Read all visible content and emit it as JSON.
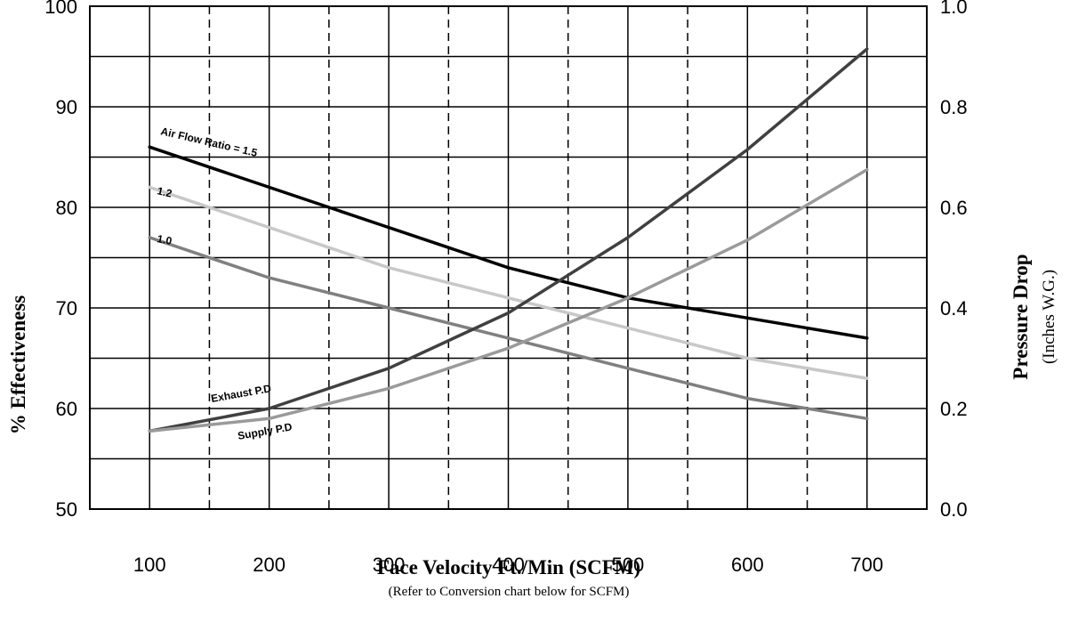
{
  "chart_data": {
    "type": "line",
    "title": "",
    "xlabel": "Face Velocity Ft./Min (SCFM)",
    "xlabel_note": "(Refer to Conversion chart below for SCFM)",
    "ylabel_left": "% Effectiveness",
    "ylabel_right": "Pressure Drop",
    "ylabel_right_sub": "(Inches W.G.)",
    "x_ticks": [
      "100",
      "200",
      "300",
      "400",
      "500",
      "600",
      "700"
    ],
    "y_left_ticks": [
      "50",
      "60",
      "70",
      "80",
      "90",
      "100"
    ],
    "y_right_ticks": [
      "0.0",
      "0.2",
      "0.4",
      "0.6",
      "0.8",
      "1.0"
    ],
    "xlim": [
      50,
      750
    ],
    "ylim_left": [
      50,
      100
    ],
    "ylim_right": [
      0.0,
      1.0
    ],
    "grid": true,
    "series": [
      {
        "name": "Air Flow Ratio = 1.5",
        "axis": "left",
        "color": "#000000",
        "x": [
          100,
          200,
          300,
          400,
          500,
          600,
          700
        ],
        "y": [
          86,
          82,
          78,
          74,
          71,
          69,
          67
        ]
      },
      {
        "name": "1.2",
        "axis": "left",
        "color": "#c8c8c8",
        "x": [
          100,
          200,
          300,
          400,
          500,
          600,
          700
        ],
        "y": [
          82,
          78,
          74,
          71,
          68,
          65,
          63
        ]
      },
      {
        "name": "1.0",
        "axis": "left",
        "color": "#808080",
        "x": [
          100,
          200,
          300,
          400,
          500,
          600,
          700
        ],
        "y": [
          77,
          73,
          70,
          67,
          64,
          61,
          59
        ]
      },
      {
        "name": "Exhaust P.D",
        "axis": "right",
        "color": "#404040",
        "x": [
          100,
          200,
          300,
          400,
          500,
          600,
          700
        ],
        "y": [
          0.155,
          0.2,
          0.28,
          0.39,
          0.54,
          0.715,
          0.915
        ]
      },
      {
        "name": "Supply P.D",
        "axis": "right",
        "color": "#9a9a9a",
        "x": [
          100,
          200,
          300,
          400,
          500,
          600,
          700
        ],
        "y": [
          0.155,
          0.18,
          0.24,
          0.32,
          0.42,
          0.535,
          0.675
        ]
      }
    ]
  }
}
